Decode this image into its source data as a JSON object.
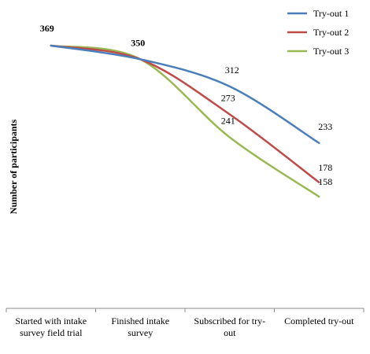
{
  "chart_data": {
    "type": "line",
    "title": "",
    "xlabel": "",
    "ylabel": "Number of participants",
    "categories": [
      [
        "Started with intake",
        "survey field trial"
      ],
      [
        "Finished intake",
        "survey"
      ],
      [
        "Subscribed for try-",
        "out"
      ],
      [
        "Completed try-out"
      ]
    ],
    "series": [
      {
        "name": "Try-out 1",
        "color": "#4a7ebb",
        "values": [
          369,
          350,
          312,
          233
        ]
      },
      {
        "name": "Try-out 2",
        "color": "#be4b48",
        "values": [
          369,
          350,
          273,
          178
        ]
      },
      {
        "name": "Try-out 3",
        "color": "#98b954",
        "values": [
          369,
          350,
          241,
          158
        ]
      }
    ],
    "data_labels": [
      {
        "text": "369",
        "category": 0,
        "value": 369,
        "bold": true
      },
      {
        "text": "350",
        "category": 1,
        "value": 350,
        "bold": true
      },
      {
        "text": "312",
        "category": 2,
        "value": 312,
        "bold": false
      },
      {
        "text": "273",
        "category": 2,
        "value": 273,
        "bold": false
      },
      {
        "text": "241",
        "category": 2,
        "value": 241,
        "bold": false
      },
      {
        "text": "233",
        "category": 3,
        "value": 233,
        "bold": false
      },
      {
        "text": "178",
        "category": 3,
        "value": 178,
        "bold": false
      },
      {
        "text": "158",
        "category": 3,
        "value": 158,
        "bold": false
      }
    ],
    "legend_position": "top-right",
    "grid": false,
    "y_axis_visible": false,
    "ylim": [
      0,
      410
    ]
  }
}
